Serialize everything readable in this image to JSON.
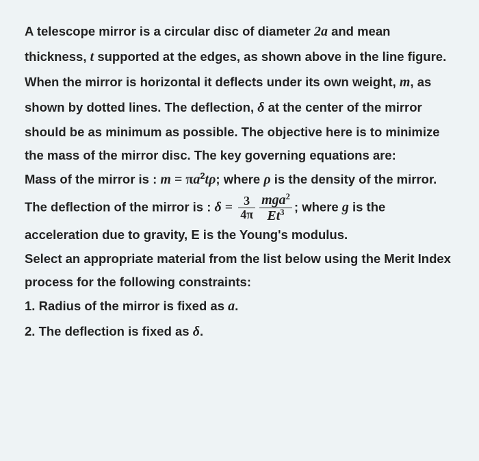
{
  "text": {
    "p1_1": "A telescope mirror is a circular disc of diameter ",
    "diameter": "2a",
    "p1_2": " and mean thickness, ",
    "thickness": "t",
    "p1_3": " supported at the edges, as shown above in the line figure. When the mirror is horizontal it deflects under its own weight, ",
    "mass_sym": "m",
    "p1_4": ", as shown by dotted lines. The deflection, ",
    "delta_sym": "δ",
    "p1_5": " at the center of the mirror should be as minimum as possible.  The objective here is to minimize the mass of the mirror disc.  The key governing equations are:",
    "mass_label": "Mass of the mirror is : ",
    "mass_eq_lhs": "m",
    "eq_sign": " = ",
    "mass_eq_rhs_pi": "π",
    "mass_eq_rhs_a": "a",
    "mass_eq_rhs_exp": "2",
    "mass_eq_rhs_t": "t",
    "mass_eq_rhs_rho": "ρ",
    "mass_after": "; where ",
    "rho_sym": "ρ",
    "mass_after2": " is the density of the mirror.",
    "defl_label": "The deflection of the mirror is : ",
    "defl_lhs": "δ",
    "frac1_num": "3",
    "frac1_den": "4π",
    "frac2_num_m": "m",
    "frac2_num_g": "g",
    "frac2_num_a": "a",
    "frac2_num_exp": "2",
    "frac2_den_E": "E",
    "frac2_den_t": "t",
    "frac2_den_exp": "3",
    "defl_after": "; where ",
    "g_sym": "g",
    "defl_after2": " is the acceleration due to gravity, E is the Young's modulus.",
    "p3": "Select an appropriate material from the list below using the Merit Index process for the following constraints:",
    "c1_num": "1. ",
    "c1_text": "Radius of the mirror is fixed as ",
    "c1_sym": "a",
    "c1_end": ".",
    "c2_num": "2. ",
    "c2_text": "The deflection is fixed as ",
    "c2_sym": "δ",
    "c2_end": "."
  },
  "style": {
    "background_color": "#eef3f5",
    "text_color": "#222222",
    "font_size_pt": 14,
    "line_height": 1.85
  }
}
